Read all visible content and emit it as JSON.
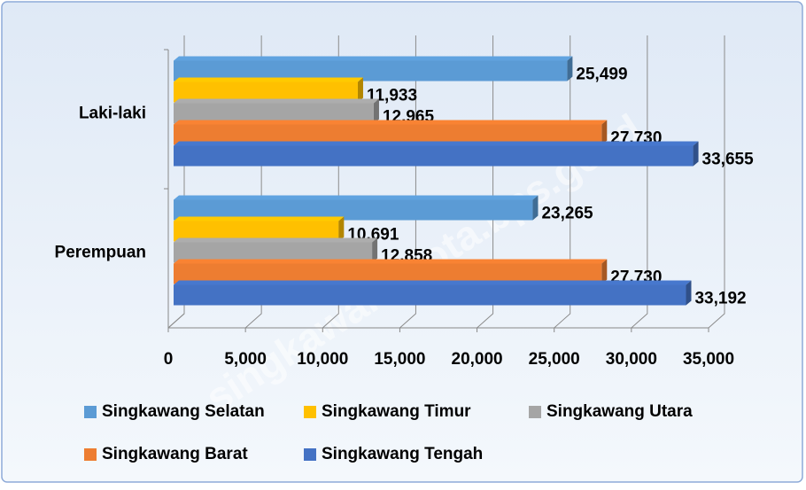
{
  "chart_data": {
    "type": "bar",
    "orientation": "horizontal",
    "categories": [
      "Laki-laki",
      "Perempuan"
    ],
    "series": [
      {
        "name": "Singkawang Selatan",
        "color": "#5b9bd5",
        "values": [
          25499,
          23265
        ],
        "value_labels": [
          "25,499",
          "23,265"
        ]
      },
      {
        "name": "Singkawang Timur",
        "color": "#ffc000",
        "values": [
          11933,
          10691
        ],
        "value_labels": [
          "11,933",
          "10,691"
        ]
      },
      {
        "name": "Singkawang Utara",
        "color": "#a5a5a5",
        "values": [
          12965,
          12858
        ],
        "value_labels": [
          "12,965",
          "12,858"
        ]
      },
      {
        "name": "Singkawang Barat",
        "color": "#ed7d31",
        "values": [
          27730,
          27730
        ],
        "value_labels": [
          "27,730",
          "27,730"
        ]
      },
      {
        "name": "Singkawang Tengah",
        "color": "#4472c4",
        "values": [
          33655,
          33192
        ],
        "value_labels": [
          "33,655",
          "33,192"
        ]
      }
    ],
    "xlim": [
      0,
      35000
    ],
    "xticks": [
      0,
      {
        "value": 5000,
        "label": "5,000"
      },
      {
        "value": 10000,
        "label": "10,000"
      },
      {
        "value": 15000,
        "label": "15,000"
      },
      {
        "value": 20000,
        "label": "20,000"
      },
      {
        "value": 25000,
        "label": "25,000"
      },
      {
        "value": 30000,
        "label": "30,000"
      },
      {
        "value": 35000,
        "label": "35,000"
      }
    ],
    "grid": true,
    "legend": "bottom",
    "watermark": "singkawangkota.bps.go.id"
  }
}
